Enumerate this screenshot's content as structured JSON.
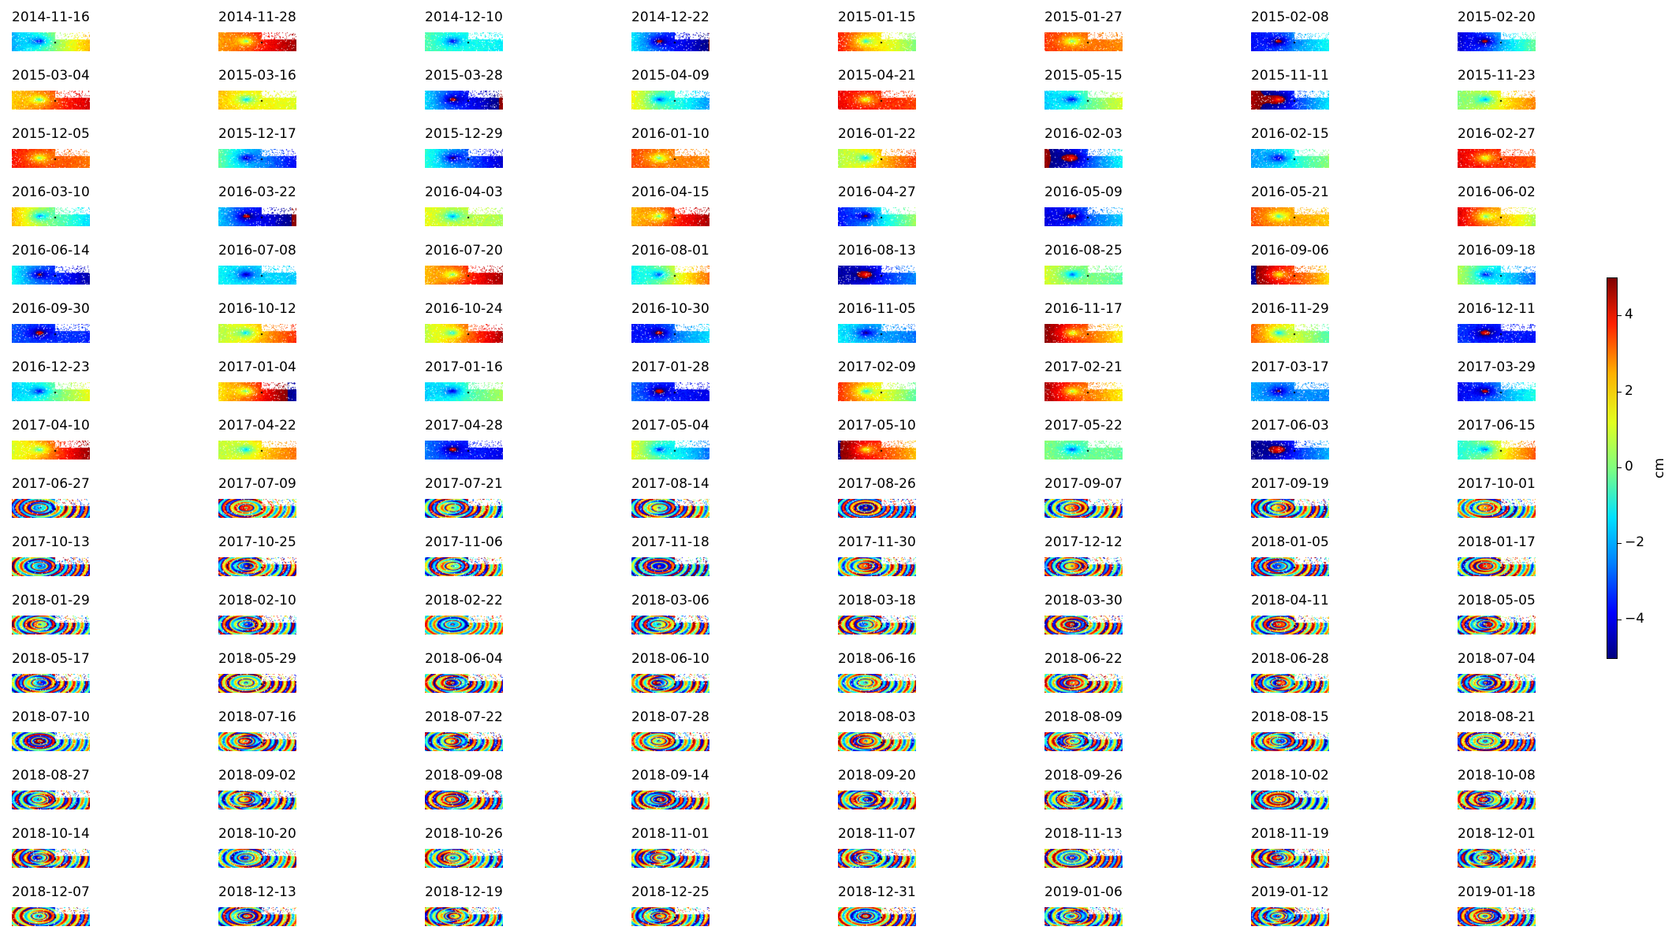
{
  "chart_data": {
    "type": "heatmap",
    "panel_titles": [
      "2014-11-16",
      "2014-11-28",
      "2014-12-10",
      "2014-12-22",
      "2015-01-15",
      "2015-01-27",
      "2015-02-08",
      "2015-02-20",
      "2015-03-04",
      "2015-03-16",
      "2015-03-28",
      "2015-04-09",
      "2015-04-21",
      "2015-05-15",
      "2015-11-11",
      "2015-11-23",
      "2015-12-05",
      "2015-12-17",
      "2015-12-29",
      "2016-01-10",
      "2016-01-22",
      "2016-02-03",
      "2016-02-15",
      "2016-02-27",
      "2016-03-10",
      "2016-03-22",
      "2016-04-03",
      "2016-04-15",
      "2016-04-27",
      "2016-05-09",
      "2016-05-21",
      "2016-06-02",
      "2016-06-14",
      "2016-07-08",
      "2016-07-20",
      "2016-08-01",
      "2016-08-13",
      "2016-08-25",
      "2016-09-06",
      "2016-09-18",
      "2016-09-30",
      "2016-10-12",
      "2016-10-24",
      "2016-10-30",
      "2016-11-05",
      "2016-11-17",
      "2016-11-29",
      "2016-12-11",
      "2016-12-23",
      "2017-01-04",
      "2017-01-16",
      "2017-01-28",
      "2017-02-09",
      "2017-02-21",
      "2017-03-17",
      "2017-03-29",
      "2017-04-10",
      "2017-04-22",
      "2017-04-28",
      "2017-05-04",
      "2017-05-10",
      "2017-05-22",
      "2017-06-03",
      "2017-06-15",
      "2017-06-27",
      "2017-07-09",
      "2017-07-21",
      "2017-08-14",
      "2017-08-26",
      "2017-09-07",
      "2017-09-19",
      "2017-10-01",
      "2017-10-13",
      "2017-10-25",
      "2017-11-06",
      "2017-11-18",
      "2017-11-30",
      "2017-12-12",
      "2018-01-05",
      "2018-01-17",
      "2018-01-29",
      "2018-02-10",
      "2018-02-22",
      "2018-03-06",
      "2018-03-18",
      "2018-03-30",
      "2018-04-11",
      "2018-05-05",
      "2018-05-17",
      "2018-05-29",
      "2018-06-04",
      "2018-06-10",
      "2018-06-16",
      "2018-06-22",
      "2018-06-28",
      "2018-07-04",
      "2018-07-10",
      "2018-07-16",
      "2018-07-22",
      "2018-07-28",
      "2018-08-03",
      "2018-08-09",
      "2018-08-15",
      "2018-08-21",
      "2018-08-27",
      "2018-09-02",
      "2018-09-08",
      "2018-09-14",
      "2018-09-20",
      "2018-09-26",
      "2018-10-02",
      "2018-10-08",
      "2018-10-14",
      "2018-10-20",
      "2018-10-26",
      "2018-11-01",
      "2018-11-07",
      "2018-11-13",
      "2018-11-19",
      "2018-12-01",
      "2018-12-07",
      "2018-12-13",
      "2018-12-19",
      "2018-12-25",
      "2018-12-31",
      "2019-01-06",
      "2019-01-12",
      "2019-01-18"
    ],
    "colorbar": {
      "label": "cm",
      "range": [
        -5,
        5
      ],
      "ticks": [
        4,
        2,
        0,
        -2,
        -4
      ],
      "tick_labels": [
        "4",
        "2",
        "0",
        "−2",
        "−4"
      ],
      "colormap": "jet"
    },
    "grid": false
  }
}
